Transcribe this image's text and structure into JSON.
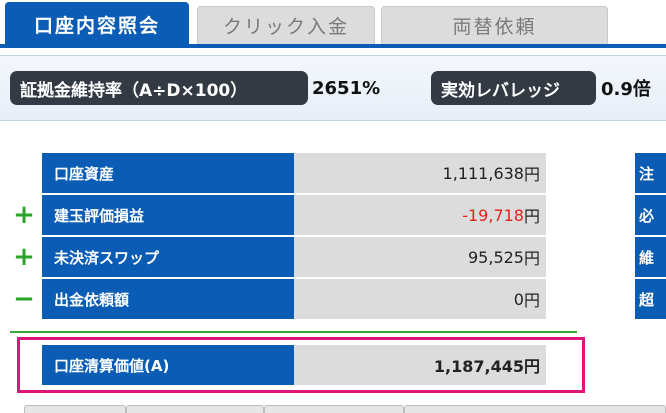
{
  "tabs": [
    {
      "label": "口座内容照会",
      "active": true
    },
    {
      "label": "クリック入金",
      "active": false
    },
    {
      "label": "両替依頼",
      "active": false
    }
  ],
  "info": {
    "margin_rate_label": "証拠金維持率（A÷D×100）",
    "margin_rate_value": "2651%",
    "leverage_label": "実効レバレッジ",
    "leverage_value": "0.9倍"
  },
  "account_rows": [
    {
      "sign": "",
      "label": "口座資産",
      "value": "1,111,638",
      "unit": "円",
      "negative": false
    },
    {
      "sign": "+",
      "label": "建玉評価損益",
      "value": "-19,718",
      "unit": "円",
      "negative": true
    },
    {
      "sign": "+",
      "label": "未決済スワップ",
      "value": "95,525",
      "unit": "円",
      "negative": false
    },
    {
      "sign": "−",
      "label": "出金依頼額",
      "value": "0",
      "unit": "円",
      "negative": false
    }
  ],
  "total": {
    "label": "口座清算価値(A)",
    "value": "1,187,445円"
  },
  "right_column": [
    "注",
    "必",
    "維",
    "超"
  ],
  "colors": {
    "primary_blue": "#0a5cb5",
    "negative_red": "#e8201c",
    "plus_green": "#2aa52a",
    "highlight_pink": "#e0157a",
    "pill_dark": "#333a44"
  }
}
